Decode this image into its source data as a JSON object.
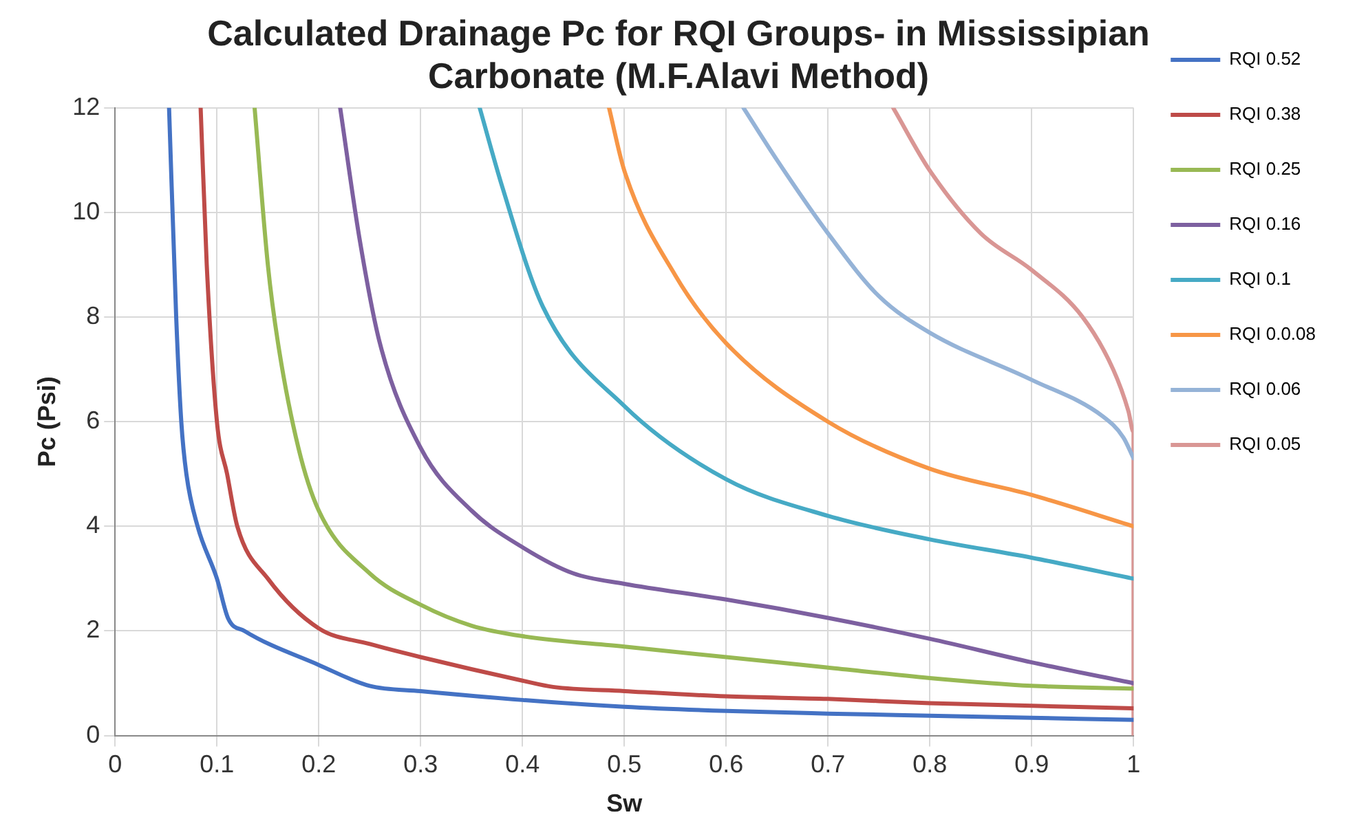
{
  "chart_data": {
    "type": "line",
    "title": "Calculated Drainage Pc for RQI Groups- in Mississipian Carbonate (M.F.Alavi Method)",
    "xlabel": "Sw",
    "ylabel": "Pc (Psi)",
    "xlim": [
      0,
      1
    ],
    "xticks": [
      0,
      0.1,
      0.2,
      0.3,
      0.4,
      0.5,
      0.6,
      0.7,
      0.8,
      0.9,
      1
    ],
    "ylim": [
      0,
      12
    ],
    "yticks": [
      0,
      2,
      4,
      6,
      8,
      10,
      12
    ],
    "grid": true,
    "legend": "right",
    "marker": "none",
    "line_style": "solid",
    "series": [
      {
        "name": "RQI 0.52",
        "color": "#4472c4",
        "x": [
          0.053,
          0.06,
          0.065,
          0.07,
          0.081,
          0.1,
          0.111,
          0.127,
          0.2,
          0.25,
          0.3,
          0.4,
          0.5,
          0.6,
          0.7,
          0.8,
          0.9,
          1
        ],
        "values": [
          12,
          8,
          6,
          5,
          4,
          3,
          2.24,
          2,
          1.35,
          0.95,
          0.85,
          0.68,
          0.55,
          0.47,
          0.42,
          0.38,
          0.34,
          0.3
        ]
      },
      {
        "name": "RQI 0.38",
        "color": "#be4b48",
        "x": [
          0.084,
          0.09,
          0.1,
          0.11,
          0.12,
          0.15,
          0.2,
          0.25,
          0.3,
          0.4,
          0.43,
          0.5,
          0.6,
          0.7,
          0.8,
          0.9,
          1
        ],
        "values": [
          12,
          9,
          6,
          5,
          4,
          3,
          2.05,
          1.75,
          1.5,
          1.05,
          0.93,
          0.85,
          0.75,
          0.7,
          0.62,
          0.57,
          0.52
        ]
      },
      {
        "name": "RQI 0.25",
        "color": "#98b954",
        "x": [
          0.137,
          0.15,
          0.16,
          0.18,
          0.2,
          0.25,
          0.3,
          0.35,
          0.4,
          0.5,
          0.6,
          0.7,
          0.8,
          0.9,
          1
        ],
        "values": [
          12,
          9,
          7.5,
          5.5,
          4.3,
          3.1,
          2.5,
          2.1,
          1.9,
          1.7,
          1.5,
          1.3,
          1.1,
          0.95,
          0.9
        ]
      },
      {
        "name": "RQI 0.16",
        "color": "#7d60a0",
        "x": [
          0.221,
          0.24,
          0.26,
          0.3,
          0.35,
          0.4,
          0.45,
          0.5,
          0.6,
          0.7,
          0.8,
          0.9,
          1
        ],
        "values": [
          12,
          9.5,
          7.5,
          5.5,
          4.3,
          3.6,
          3.1,
          2.9,
          2.6,
          2.25,
          1.85,
          1.4,
          1.0
        ]
      },
      {
        "name": "RQI 0.1",
        "color": "#46aac5",
        "x": [
          0.358,
          0.38,
          0.42,
          0.5,
          0.6,
          0.7,
          0.8,
          0.9,
          1
        ],
        "values": [
          12,
          10.5,
          8.2,
          6.3,
          4.9,
          4.2,
          3.75,
          3.4,
          3.0
        ]
      },
      {
        "name": "RQI 0.0.08",
        "color": "#f79646",
        "x": [
          0.485,
          0.5,
          0.55,
          0.6,
          0.7,
          0.8,
          0.9,
          1
        ],
        "values": [
          12,
          10.8,
          8.8,
          7.5,
          6.0,
          5.1,
          4.6,
          4.0
        ]
      },
      {
        "name": "RQI 0.06",
        "color": "#95b3d7",
        "x": [
          0.617,
          0.65,
          0.7,
          0.75,
          0.8,
          0.9,
          0.97,
          0.99,
          1
        ],
        "values": [
          12,
          11,
          9.6,
          8.4,
          7.7,
          6.8,
          6.1,
          5.7,
          5.3
        ]
      },
      {
        "name": "RQI 0.05",
        "color": "#d99694",
        "x": [
          0.764,
          0.8,
          0.85,
          0.9,
          0.95,
          0.98,
          0.995,
          1,
          1
        ],
        "values": [
          12,
          10.8,
          9.6,
          8.9,
          8.0,
          7.0,
          6.2,
          5.8,
          0
        ]
      }
    ]
  }
}
